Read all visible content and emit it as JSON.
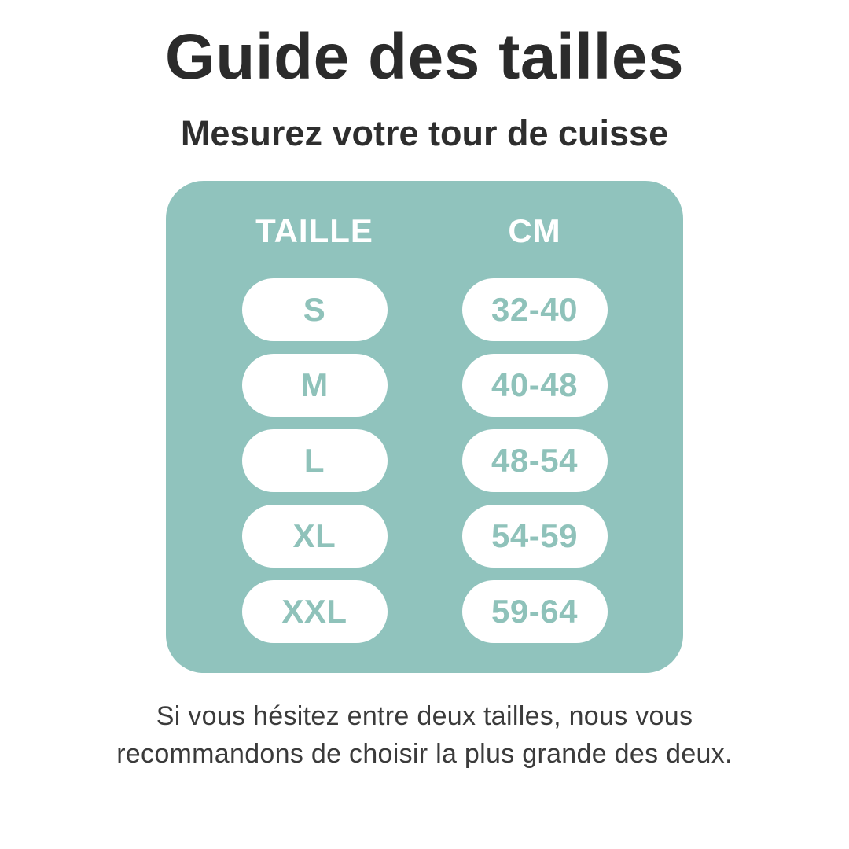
{
  "title": "Guide des tailles",
  "subtitle": "Mesurez votre tour de cuisse",
  "table": {
    "headers": [
      "TAILLE",
      "CM"
    ],
    "rows": [
      {
        "size": "S",
        "cm": "32-40"
      },
      {
        "size": "M",
        "cm": "40-48"
      },
      {
        "size": "L",
        "cm": "48-54"
      },
      {
        "size": "XL",
        "cm": "54-59"
      },
      {
        "size": "XXL",
        "cm": "59-64"
      }
    ]
  },
  "footer_note": "Si vous hésitez entre deux tailles, nous vous recommandons de choisir la plus grande des deux.",
  "colors": {
    "page_bg": "#ffffff",
    "panel_bg": "#90c3bd",
    "pill_bg": "#ffffff",
    "pill_text": "#8fc2ba",
    "header_text": "#ffffff",
    "title_text": "#2b2b2b",
    "footer_text": "#3b3b3b"
  },
  "chart_data": {
    "type": "table",
    "title": "Guide des tailles",
    "subtitle": "Mesurez votre tour de cuisse",
    "columns": [
      "TAILLE",
      "CM"
    ],
    "rows": [
      [
        "S",
        "32-40"
      ],
      [
        "M",
        "40-48"
      ],
      [
        "L",
        "48-54"
      ],
      [
        "XL",
        "54-59"
      ],
      [
        "XXL",
        "59-64"
      ]
    ],
    "note": "Si vous hésitez entre deux tailles, nous vous recommandons de choisir la plus grande des deux."
  }
}
